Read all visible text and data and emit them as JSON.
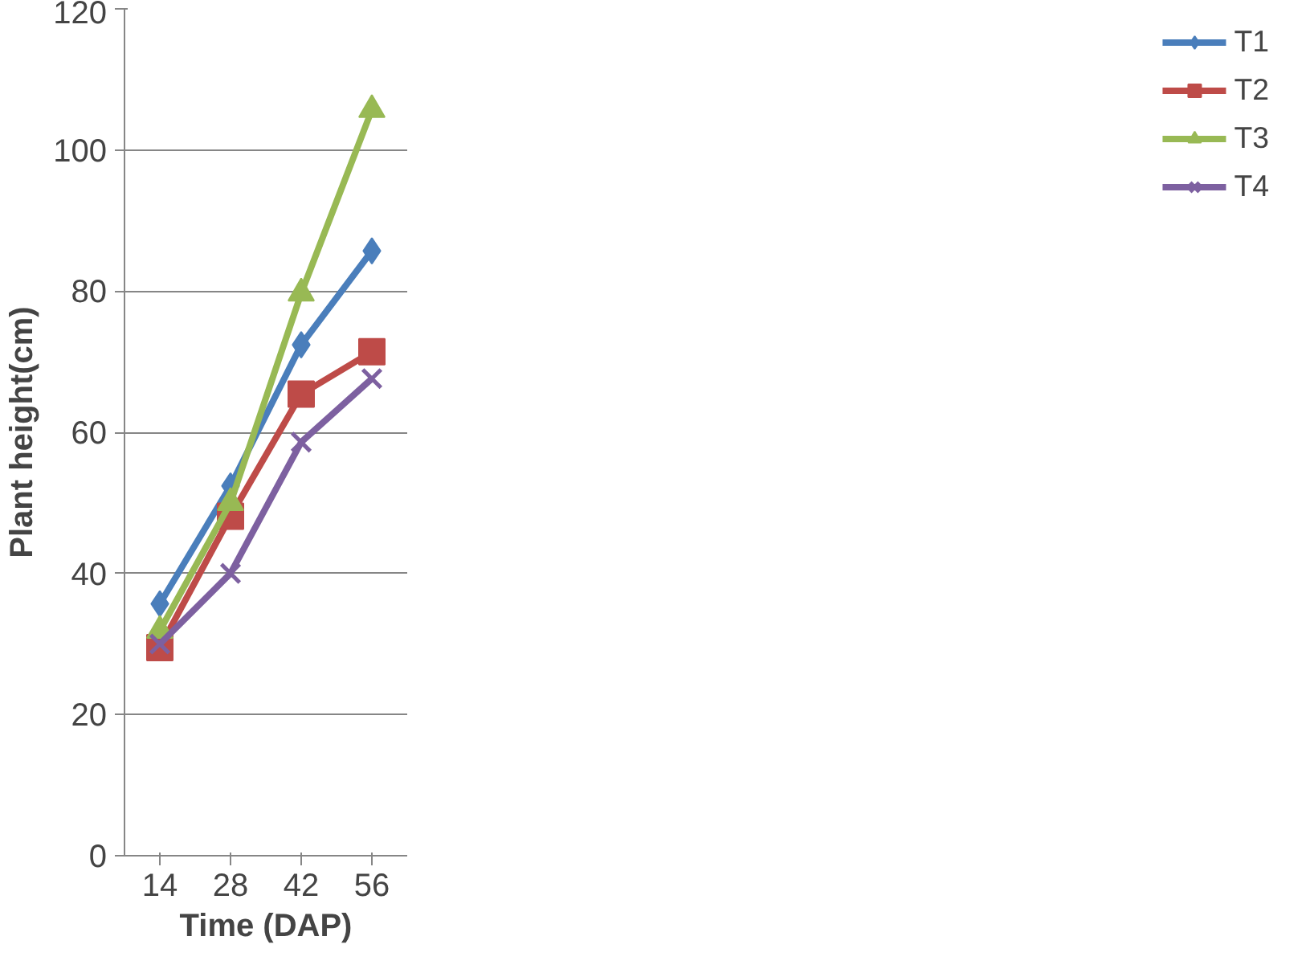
{
  "chart_data": {
    "type": "line",
    "xlabel": "Time (DAP)",
    "ylabel": "Plant height(cm)",
    "categories": [
      "14",
      "28",
      "42",
      "56"
    ],
    "series": [
      {
        "name": "T1",
        "color": "#4a7ebb",
        "marker": "diamond",
        "values": [
          35.7,
          52.4,
          72.4,
          85.7
        ]
      },
      {
        "name": "T2",
        "color": "#be4b48",
        "marker": "square",
        "values": [
          29.5,
          48.1,
          65.4,
          71.4
        ]
      },
      {
        "name": "T3",
        "color": "#98b954",
        "marker": "triangle",
        "values": [
          31.9,
          50,
          79.7,
          105.7
        ]
      },
      {
        "name": "T4",
        "color": "#7d60a0",
        "marker": "cross",
        "values": [
          30,
          40,
          58.6,
          67.6
        ]
      }
    ],
    "ylim": [
      0,
      120
    ],
    "yticks": [
      0,
      20,
      40,
      60,
      80,
      100,
      120
    ],
    "grid": "y",
    "legend": "right",
    "line_style": "solid"
  }
}
